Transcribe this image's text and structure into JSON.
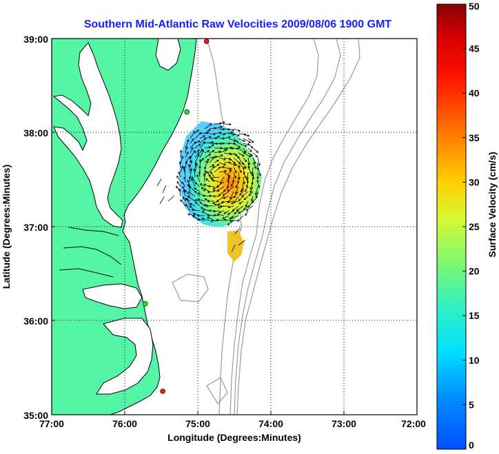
{
  "title": "Southern Mid-Atlantic Raw Velocities 2009/08/06 1900 GMT",
  "xlabel": "Longitude (Degrees:Minutes)",
  "ylabel": "Latitude (Degrees:Minutes)",
  "x_ticks": [
    "77:00",
    "76:00",
    "75:00",
    "74:00",
    "73:00",
    "72:00"
  ],
  "y_ticks": [
    "39:00",
    "38:00",
    "37:00",
    "36:00",
    "35:00"
  ],
  "colorbar": {
    "label": "Surface Velocity (cm/s)",
    "ticks": [
      "0",
      "5",
      "10",
      "15",
      "20",
      "25",
      "30",
      "35",
      "40",
      "45",
      "50"
    ],
    "min": 0,
    "max": 50,
    "units": "cm/s"
  },
  "colors": {
    "land": "#55f5a6",
    "water": "#ffffff",
    "coastline": "#000000",
    "bathymetry": "#999999",
    "grid": "#000000",
    "title": "#1a1aff",
    "station_green": "#22dd22",
    "station_red": "#ff1111"
  },
  "chart_data": {
    "type": "map",
    "xlim": [
      -77,
      -72
    ],
    "ylim": [
      35,
      39
    ],
    "grid": true,
    "stations": [
      {
        "lon": -74.88,
        "lat": 38.97,
        "color": "red"
      },
      {
        "lon": -75.15,
        "lat": 38.22,
        "color": "green"
      },
      {
        "lon": -75.72,
        "lat": 36.18,
        "color": "green"
      },
      {
        "lon": -75.48,
        "lat": 35.25,
        "color": "red"
      }
    ]
  }
}
